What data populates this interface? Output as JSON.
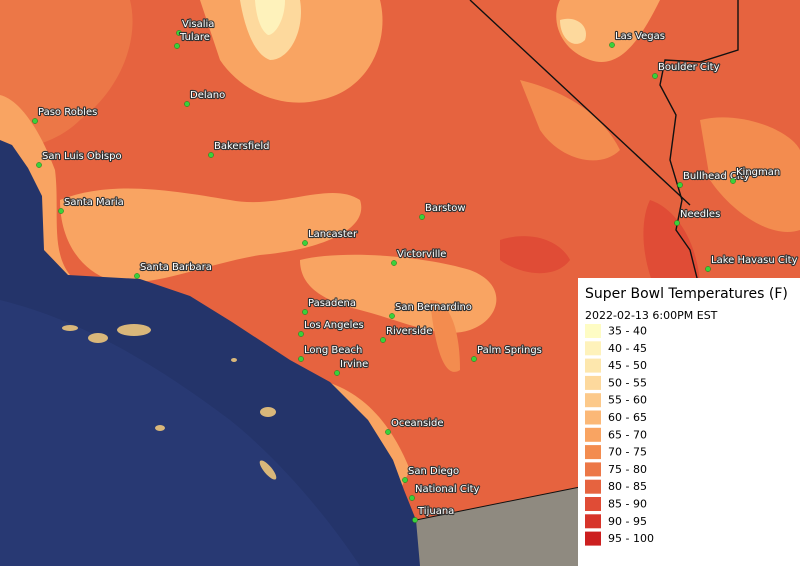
{
  "map": {
    "legend": {
      "title": "Super Bowl Temperatures (F)",
      "subtitle": "2022-02-13 6:00PM EST",
      "items": [
        {
          "label": "35 - 40",
          "color": "#fefcc4"
        },
        {
          "label": "40 - 45",
          "color": "#fef2bb"
        },
        {
          "label": "45 - 50",
          "color": "#fde7ad"
        },
        {
          "label": "50 - 55",
          "color": "#fdd99d"
        },
        {
          "label": "55 - 60",
          "color": "#fcc98a"
        },
        {
          "label": "60 - 65",
          "color": "#fbb877"
        },
        {
          "label": "65 - 70",
          "color": "#f9a462"
        },
        {
          "label": "70 - 75",
          "color": "#f38c4f"
        },
        {
          "label": "75 - 80",
          "color": "#ec7747"
        },
        {
          "label": "80 - 85",
          "color": "#e6633f"
        },
        {
          "label": "85 - 90",
          "color": "#e04c36"
        },
        {
          "label": "90 - 95",
          "color": "#d7342a"
        },
        {
          "label": "95 - 100",
          "color": "#cc1f1f"
        }
      ]
    },
    "cities": [
      "Visalia",
      "Tulare",
      "Delano",
      "Paso Robles",
      "San Luis Obispo",
      "Bakersfield",
      "Santa Maria",
      "Lancaster",
      "Barstow",
      "Victorville",
      "Santa Barbara",
      "Pasadena",
      "San Bernardino",
      "Los Angeles",
      "Riverside",
      "Long Beach",
      "Irvine",
      "Palm Springs",
      "Oceanside",
      "San Diego",
      "National City",
      "Tijuana",
      "Las Vegas",
      "Boulder City",
      "Bullhead City",
      "Kingman",
      "Needles",
      "Lake Havasu City"
    ]
  }
}
